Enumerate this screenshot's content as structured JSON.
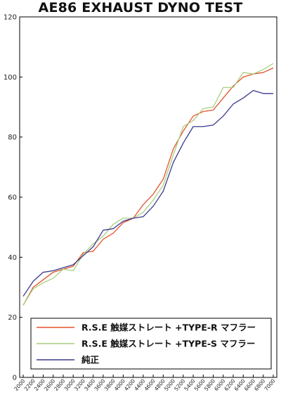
{
  "chart_data": {
    "type": "line",
    "title": "AE86 EXHAUST DYNO TEST",
    "xlabel": "",
    "ylabel": "",
    "ylim": [
      0,
      120
    ],
    "yticks": [
      0,
      20,
      40,
      60,
      80,
      100,
      120
    ],
    "grid": false,
    "legend_position": "bottom-right",
    "x": [
      2000,
      2200,
      2400,
      2600,
      2800,
      3000,
      3200,
      3400,
      3600,
      3800,
      4000,
      4200,
      4400,
      4600,
      4800,
      5000,
      5200,
      5400,
      5600,
      5800,
      6000,
      6200,
      6400,
      6600,
      6800,
      7000
    ],
    "series": [
      {
        "name": "R.S.E 触媒ストレート +TYPE-R マフラー",
        "color": "#e4532c",
        "values": [
          24.0,
          30.0,
          32.5,
          35.0,
          36.0,
          37.0,
          41.5,
          42.0,
          46.0,
          48.0,
          51.5,
          53.0,
          57.5,
          61.0,
          66.0,
          76.0,
          82.0,
          87.0,
          88.5,
          89.0,
          93.0,
          97.0,
          100.0,
          101.0,
          101.5,
          103.0
        ]
      },
      {
        "name": "R.S.E 触媒ストレート +TYPE-S マフラー",
        "color": "#a8cf7f",
        "values": [
          24.0,
          29.5,
          31.5,
          33.0,
          36.0,
          35.5,
          41.0,
          44.5,
          47.0,
          51.0,
          53.0,
          53.0,
          55.0,
          59.0,
          64.0,
          74.0,
          83.5,
          85.5,
          89.5,
          90.0,
          96.5,
          96.5,
          101.5,
          101.0,
          102.5,
          104.5
        ]
      },
      {
        "name": "純正",
        "color": "#3a3a8e",
        "values": [
          27.0,
          32.0,
          35.0,
          35.5,
          36.5,
          37.5,
          40.5,
          43.5,
          49.0,
          49.5,
          52.0,
          53.0,
          53.5,
          57.0,
          62.0,
          71.5,
          78.0,
          83.5,
          83.5,
          84.0,
          87.0,
          91.0,
          93.0,
          95.5,
          94.5,
          94.5
        ]
      }
    ]
  }
}
